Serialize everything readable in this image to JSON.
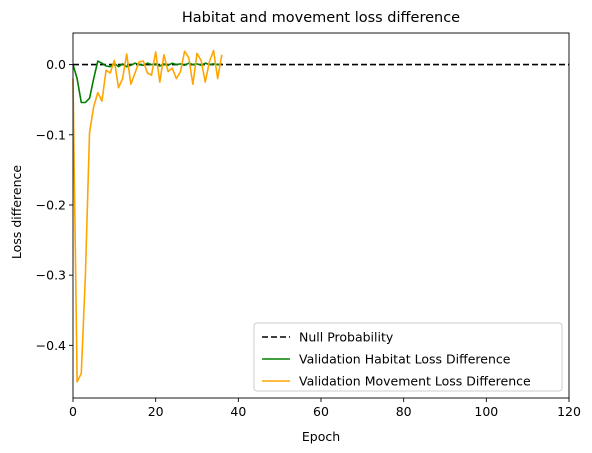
{
  "chart_data": {
    "type": "line",
    "title": "Habitat and movement loss difference",
    "xlabel": "Epoch",
    "ylabel": "Loss difference",
    "xlim": [
      0,
      120
    ],
    "ylim": [
      -0.475,
      0.045
    ],
    "xticks": [
      0,
      20,
      40,
      60,
      80,
      100,
      120
    ],
    "yticks": [
      0.0,
      -0.1,
      -0.2,
      -0.3,
      -0.4
    ],
    "ytick_labels": [
      "0.0",
      "−0.1",
      "−0.2",
      "−0.3",
      "−0.4"
    ],
    "grid": false,
    "legend": "bottom-right",
    "series": [
      {
        "name": "Null Probability",
        "color": "#000000",
        "style": "dashed",
        "x": [
          0,
          120
        ],
        "y": [
          0,
          0
        ]
      },
      {
        "name": "Validation Habitat Loss Difference",
        "color": "#008000",
        "style": "solid",
        "x": [
          0,
          1,
          2,
          3,
          4,
          5,
          6,
          7,
          8,
          9,
          10,
          11,
          12,
          13,
          14,
          15,
          16,
          17,
          18,
          19,
          20,
          21,
          22,
          23,
          24,
          25,
          26,
          27,
          28,
          29,
          30,
          31,
          32,
          33,
          34,
          35,
          36
        ],
        "y": [
          0.0,
          -0.02,
          -0.054,
          -0.054,
          -0.048,
          -0.02,
          0.005,
          0.002,
          -0.002,
          -0.003,
          0.002,
          -0.003,
          0.001,
          -0.003,
          -0.001,
          0.002,
          0.0,
          -0.001,
          0.002,
          0.0,
          0.001,
          -0.002,
          0.001,
          -0.001,
          0.002,
          0.0,
          0.001,
          -0.001,
          0.002,
          0.0,
          0.001,
          -0.001,
          0.002,
          0.0,
          0.001,
          0.0,
          0.001
        ]
      },
      {
        "name": "Validation Movement Loss Difference",
        "color": "#FFA500",
        "style": "solid",
        "x": [
          0,
          1,
          2,
          3,
          4,
          5,
          6,
          7,
          8,
          9,
          10,
          11,
          12,
          13,
          14,
          15,
          16,
          17,
          18,
          19,
          20,
          21,
          22,
          23,
          24,
          25,
          26,
          27,
          28,
          29,
          30,
          31,
          32,
          33,
          34,
          35,
          36
        ],
        "y": [
          -0.02,
          -0.452,
          -0.44,
          -0.3,
          -0.097,
          -0.06,
          -0.04,
          -0.052,
          -0.008,
          -0.012,
          0.006,
          -0.033,
          -0.02,
          0.015,
          -0.028,
          -0.012,
          0.004,
          0.005,
          -0.012,
          -0.015,
          0.018,
          -0.025,
          0.014,
          -0.01,
          -0.005,
          -0.02,
          -0.01,
          0.019,
          0.01,
          -0.028,
          0.016,
          0.006,
          -0.025,
          0.004,
          0.02,
          -0.02,
          0.014
        ]
      }
    ]
  }
}
